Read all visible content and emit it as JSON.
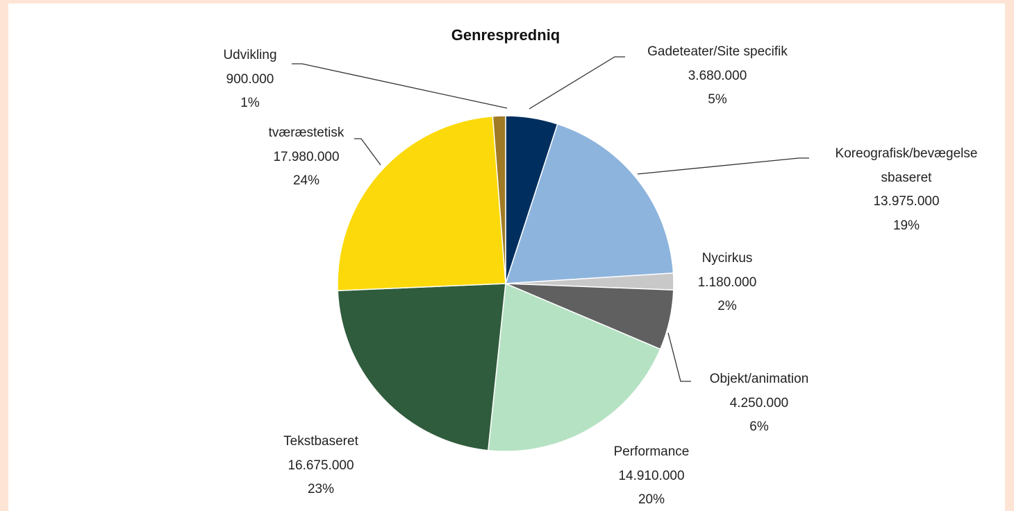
{
  "chart_data": {
    "type": "pie",
    "title": "Genrespredniq",
    "categories": [
      "Gadeteater/Site specifik",
      "Koreografisk/bevægelse\nsbaseret",
      "Nycirkus",
      "Objekt/animation",
      "Performance",
      "Tekstbaseret",
      "tværæstetisk",
      "Udvikling"
    ],
    "values": [
      3680000,
      13975000,
      1180000,
      4250000,
      14910000,
      16675000,
      17980000,
      900000
    ],
    "value_labels": [
      "3.680.000",
      "13.975.000",
      "1.180.000",
      "4.250.000",
      "14.910.000",
      "16.675.000",
      "17.980.000",
      "900.000"
    ],
    "percent_labels": [
      "5%",
      "19%",
      "2%",
      "6%",
      "20%",
      "23%",
      "24%",
      "1%"
    ],
    "colors": [
      "#002f5f",
      "#8db4dd",
      "#c8c8c8",
      "#606060",
      "#b5e2c3",
      "#2f5c3c",
      "#fcd90a",
      "#a07a24"
    ]
  }
}
